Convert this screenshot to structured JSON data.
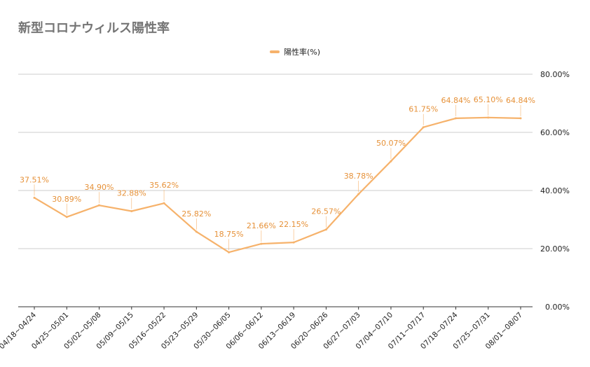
{
  "chart_data": {
    "type": "line",
    "title": "新型コロナウィルス陽性率",
    "xlabel": "",
    "ylabel": "",
    "categories": [
      "04/18~04/24",
      "04/25~05/01",
      "05/02~05/08",
      "05/09~05/15",
      "05/16~05/22",
      "05/23~05/29",
      "05/30~06/05",
      "06/06~06/12",
      "06/13~06/19",
      "06/20~06/26",
      "06/27~07/03",
      "07/04~07/10",
      "07/11~07/17",
      "07/18~07/24",
      "07/25~07/31",
      "08/01~08/07"
    ],
    "series": [
      {
        "name": "陽性率(%)",
        "color": "#f6b26b",
        "values": [
          37.51,
          30.89,
          34.9,
          32.88,
          35.62,
          25.82,
          18.75,
          21.66,
          22.15,
          26.57,
          38.78,
          50.07,
          61.75,
          64.84,
          65.1,
          64.84
        ],
        "labels": [
          "37.51%",
          "30.89%",
          "34.90%",
          "32.88%",
          "35.62%",
          "25.82%",
          "18.75%",
          "21.66%",
          "22.15%",
          "26.57%",
          "38.78%",
          "50.07%",
          "61.75%",
          "64.84%",
          "65.10%",
          "64.84%"
        ]
      }
    ],
    "ylim": [
      0,
      80
    ],
    "yticks": [
      0,
      20,
      40,
      60,
      80
    ],
    "ytick_labels": [
      "0.00%",
      "20.00%",
      "40.00%",
      "60.00%",
      "80.00%"
    ],
    "y_axis_side": "right",
    "grid": true,
    "legend": "top-center",
    "label_color": "#e69138"
  }
}
